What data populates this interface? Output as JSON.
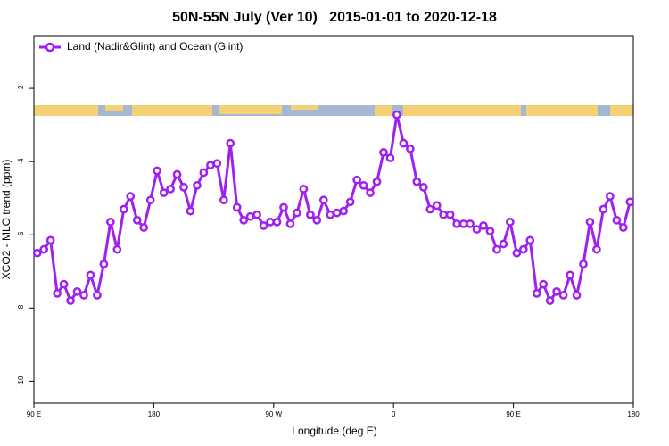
{
  "chart_data": {
    "type": "line",
    "title": "50N-55N July (Ver 10)   2015-01-01 to 2020-12-18",
    "xlabel": "Longitude (deg E)",
    "ylabel": "XCO2 - MLO trend (ppm)",
    "legend": "top-left",
    "xlim": [
      90,
      540
    ],
    "ylim": [
      -10.6,
      -0.56
    ],
    "xticks": [
      {
        "value": 90,
        "label": "90 E"
      },
      180,
      {
        "value": 270,
        "label": "90 W"
      },
      {
        "value": 360,
        "label": "0"
      },
      {
        "value": 450,
        "label": "90 E"
      },
      {
        "value": 540,
        "label": "180"
      }
    ],
    "yticks": [
      -2,
      -4,
      -6,
      -8,
      -10
    ],
    "x": [
      92.5,
      97.5,
      102.5,
      107.5,
      112.5,
      117.5,
      122.5,
      127.5,
      132.5,
      137.5,
      142.5,
      147.5,
      152.5,
      157.5,
      162.5,
      167.5,
      172.5,
      177.5,
      182.5,
      187.5,
      192.5,
      197.5,
      202.5,
      207.5,
      212.5,
      217.5,
      222.5,
      227.5,
      232.5,
      237.5,
      242.5,
      247.5,
      252.5,
      257.5,
      262.5,
      267.5,
      272.5,
      277.5,
      282.5,
      287.5,
      292.5,
      297.5,
      302.5,
      307.5,
      312.5,
      317.5,
      322.5,
      327.5,
      332.5,
      337.5,
      342.5,
      347.5,
      352.5,
      357.5,
      362.5,
      367.5,
      372.5,
      377.5,
      382.5,
      387.5,
      392.5,
      397.5,
      402.5,
      407.5,
      412.5,
      417.5,
      422.5,
      427.5,
      432.5,
      437.5,
      442.5,
      447.5,
      452.5,
      457.5,
      462.5,
      467.5,
      472.5,
      477.5,
      482.5,
      487.5,
      492.5,
      497.5,
      502.5,
      507.5,
      512.5,
      517.5,
      522.5,
      527.5,
      532.5,
      537.5
    ],
    "series": [
      {
        "name": "Land (Nadir&Glint) and Ocean (Glint)",
        "color": "#a020f0",
        "values": [
          -6.5,
          -6.4,
          -6.15,
          -7.6,
          -7.35,
          -7.8,
          -7.55,
          -7.65,
          -7.1,
          -7.65,
          -6.8,
          -5.65,
          -6.4,
          -5.3,
          -4.95,
          -5.6,
          -5.8,
          -5.05,
          -4.25,
          -4.85,
          -4.75,
          -4.35,
          -4.7,
          -5.35,
          -4.65,
          -4.3,
          -4.1,
          -4.05,
          -5.05,
          -3.5,
          -5.25,
          -5.6,
          -5.5,
          -5.45,
          -5.75,
          -5.65,
          -5.65,
          -5.25,
          -5.7,
          -5.4,
          -4.75,
          -5.45,
          -5.6,
          -5.05,
          -5.45,
          -5.4,
          -5.35,
          -5.1,
          -4.5,
          -4.65,
          -4.85,
          -4.55,
          -3.75,
          -3.9,
          -2.72,
          -3.5,
          -3.65,
          -4.55,
          -4.7,
          -5.3,
          -5.2,
          -5.45,
          -5.45,
          -5.7,
          -5.7,
          -5.7,
          -5.85,
          -5.75,
          -5.9,
          -6.4,
          -6.25,
          -5.65,
          -6.5,
          -6.4,
          -6.15,
          -7.6,
          -7.35,
          -7.8,
          -7.55,
          -7.65,
          -7.1,
          -7.65,
          -6.8,
          -5.65,
          -6.4,
          -5.3,
          -4.95,
          -5.6,
          -5.8,
          -5.1
        ]
      }
    ]
  }
}
